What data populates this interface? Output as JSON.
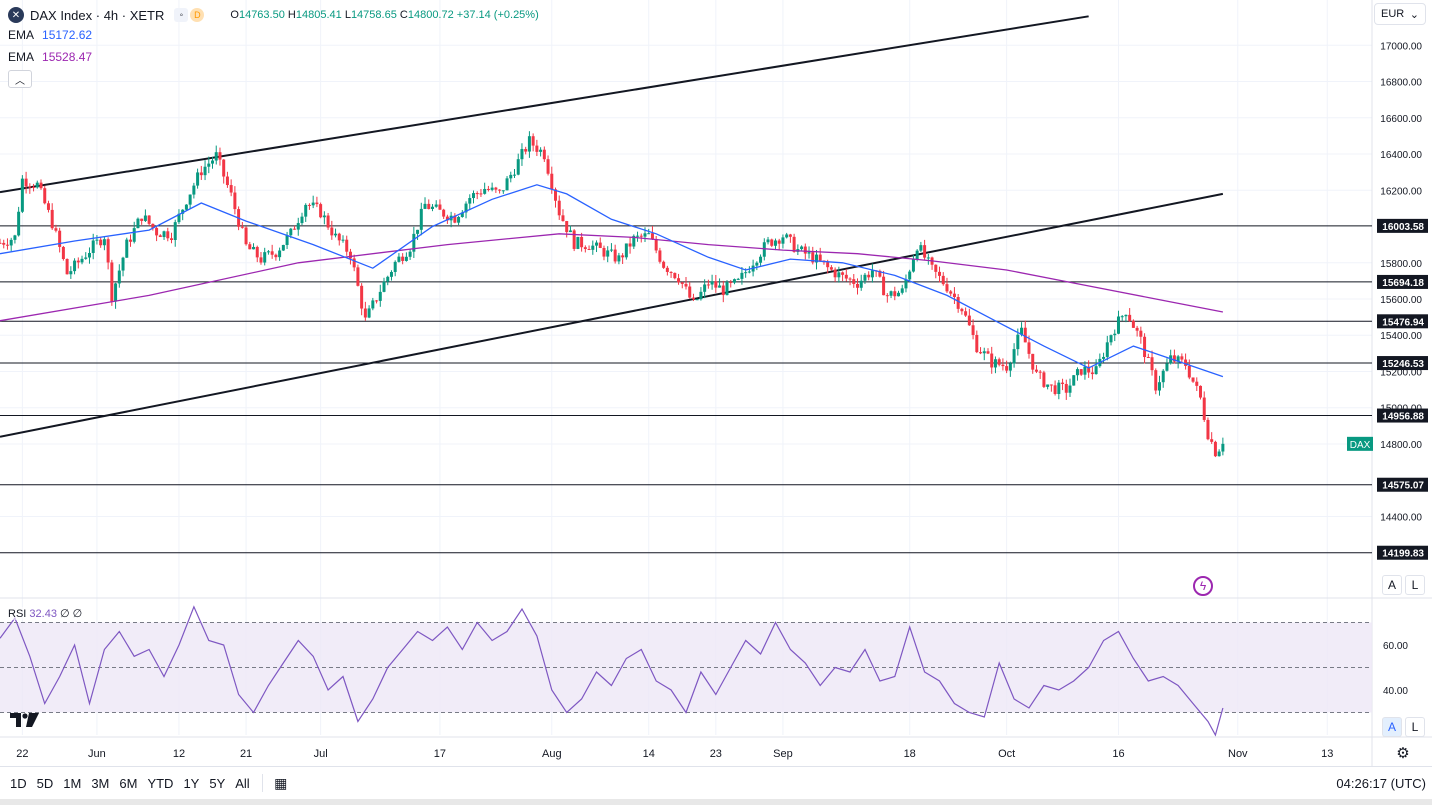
{
  "legend": {
    "symbol_icon": "x-icon",
    "title": "DAX Index · 4h · XETR",
    "d_badge": "D",
    "open_label": "O",
    "open": "14763.50",
    "high_label": "H",
    "high": "14805.41",
    "low_label": "L",
    "low": "14758.65",
    "close_label": "C",
    "close": "14800.72",
    "change": "+37.14 (+0.25%)",
    "ema1_label": "EMA",
    "ema1_value": "15172.62",
    "ema2_label": "EMA",
    "ema2_value": "15528.47",
    "collapse_icon": "chevron-up-icon"
  },
  "currency": {
    "label": "EUR",
    "icon": "chevron-down-icon"
  },
  "price_axis": {
    "ticks": [
      "17000.00",
      "16800.00",
      "16600.00",
      "16400.00",
      "16200.00",
      "15800.00",
      "15600.00",
      "15400.00",
      "15200.00",
      "15000.00",
      "14800.00",
      "14400.00"
    ]
  },
  "levels": [
    "16003.58",
    "15694.18",
    "15476.94",
    "15246.53",
    "14956.88",
    "14575.07",
    "14199.83"
  ],
  "dax_tag": "DAX",
  "time_axis": {
    "labels": [
      "22",
      "Jun",
      "12",
      "21",
      "Jul",
      "17",
      "Aug",
      "14",
      "23",
      "Sep",
      "18",
      "Oct",
      "16",
      "Nov",
      "13"
    ]
  },
  "rsi": {
    "label": "RSI",
    "value": "32.43",
    "extra1": "∅",
    "extra2": "∅",
    "ticks": [
      "60.00",
      "40.00"
    ]
  },
  "axis_buttons": {
    "auto": "A",
    "log": "L"
  },
  "bottom_bar": {
    "ranges": [
      "1D",
      "5D",
      "1M",
      "3M",
      "6M",
      "YTD",
      "1Y",
      "5Y",
      "All"
    ],
    "calendar_icon": "calendar-range-icon",
    "clock": "04:26:17 (UTC)"
  },
  "colors": {
    "up": "#089981",
    "down": "#f23645",
    "ema_fast": "#2962ff",
    "ema_slow": "#9c27b0",
    "rsi_line": "#7e57c2",
    "rsi_band": "#ede7f6",
    "dax_tag": "#089981"
  },
  "chart_data": {
    "type": "candlestick",
    "title": "DAX Index · 4h · XETR",
    "y_range": [
      13950,
      17250
    ],
    "x_range_days": [
      0,
      184
    ],
    "x_ticks": [
      {
        "label": "22",
        "day": 3
      },
      {
        "label": "Jun",
        "day": 13
      },
      {
        "label": "12",
        "day": 24
      },
      {
        "label": "21",
        "day": 33
      },
      {
        "label": "Jul",
        "day": 43
      },
      {
        "label": "17",
        "day": 59
      },
      {
        "label": "Aug",
        "day": 74
      },
      {
        "label": "14",
        "day": 87
      },
      {
        "label": "23",
        "day": 96
      },
      {
        "label": "Sep",
        "day": 105
      },
      {
        "label": "18",
        "day": 122
      },
      {
        "label": "Oct",
        "day": 135
      },
      {
        "label": "16",
        "day": 150
      },
      {
        "label": "Nov",
        "day": 166
      },
      {
        "label": "13",
        "day": 178
      }
    ],
    "close_path": [
      [
        0,
        15910
      ],
      [
        2,
        15940
      ],
      [
        3,
        16260
      ],
      [
        5,
        16230
      ],
      [
        7,
        16020
      ],
      [
        9,
        15740
      ],
      [
        10,
        15780
      ],
      [
        12,
        15870
      ],
      [
        14,
        15950
      ],
      [
        15,
        15620
      ],
      [
        17,
        15900
      ],
      [
        19,
        16060
      ],
      [
        21,
        15970
      ],
      [
        23,
        15960
      ],
      [
        25,
        16150
      ],
      [
        27,
        16310
      ],
      [
        29,
        16390
      ],
      [
        31,
        16170
      ],
      [
        33,
        15890
      ],
      [
        35,
        15820
      ],
      [
        37,
        15860
      ],
      [
        39,
        15960
      ],
      [
        41,
        16130
      ],
      [
        43,
        16080
      ],
      [
        45,
        15940
      ],
      [
        47,
        15850
      ],
      [
        49,
        15480
      ],
      [
        51,
        15650
      ],
      [
        53,
        15800
      ],
      [
        55,
        15890
      ],
      [
        57,
        16120
      ],
      [
        59,
        16080
      ],
      [
        61,
        16050
      ],
      [
        63,
        16160
      ],
      [
        65,
        16210
      ],
      [
        67,
        16180
      ],
      [
        69,
        16320
      ],
      [
        71,
        16470
      ],
      [
        73,
        16400
      ],
      [
        75,
        16080
      ],
      [
        77,
        15910
      ],
      [
        79,
        15900
      ],
      [
        81,
        15860
      ],
      [
        83,
        15820
      ],
      [
        85,
        15930
      ],
      [
        87,
        15950
      ],
      [
        89,
        15790
      ],
      [
        91,
        15720
      ],
      [
        93,
        15570
      ],
      [
        95,
        15690
      ],
      [
        97,
        15650
      ],
      [
        99,
        15690
      ],
      [
        101,
        15810
      ],
      [
        103,
        15910
      ],
      [
        105,
        15950
      ],
      [
        107,
        15870
      ],
      [
        109,
        15830
      ],
      [
        111,
        15770
      ],
      [
        113,
        15720
      ],
      [
        115,
        15690
      ],
      [
        117,
        15760
      ],
      [
        119,
        15620
      ],
      [
        121,
        15640
      ],
      [
        123,
        15900
      ],
      [
        125,
        15760
      ],
      [
        127,
        15670
      ],
      [
        129,
        15550
      ],
      [
        131,
        15340
      ],
      [
        133,
        15250
      ],
      [
        135,
        15230
      ],
      [
        137,
        15420
      ],
      [
        139,
        15180
      ],
      [
        141,
        15110
      ],
      [
        143,
        15100
      ],
      [
        145,
        15210
      ],
      [
        147,
        15200
      ],
      [
        149,
        15410
      ],
      [
        151,
        15540
      ],
      [
        153,
        15370
      ],
      [
        155,
        15120
      ],
      [
        157,
        15270
      ],
      [
        159,
        15240
      ],
      [
        161,
        15050
      ],
      [
        162,
        14860
      ],
      [
        163,
        14760
      ],
      [
        164,
        14800
      ]
    ],
    "ema_fast": [
      [
        0,
        15850
      ],
      [
        10,
        15920
      ],
      [
        20,
        15980
      ],
      [
        27,
        16130
      ],
      [
        33,
        16030
      ],
      [
        42,
        15900
      ],
      [
        50,
        15770
      ],
      [
        58,
        16000
      ],
      [
        66,
        16150
      ],
      [
        72,
        16230
      ],
      [
        76,
        16180
      ],
      [
        82,
        16040
      ],
      [
        88,
        15960
      ],
      [
        95,
        15830
      ],
      [
        100,
        15760
      ],
      [
        106,
        15820
      ],
      [
        113,
        15800
      ],
      [
        120,
        15730
      ],
      [
        127,
        15620
      ],
      [
        133,
        15490
      ],
      [
        140,
        15340
      ],
      [
        146,
        15220
      ],
      [
        152,
        15340
      ],
      [
        157,
        15270
      ],
      [
        164,
        15172
      ]
    ],
    "ema_slow": [
      [
        0,
        15480
      ],
      [
        20,
        15620
      ],
      [
        40,
        15800
      ],
      [
        60,
        15900
      ],
      [
        75,
        15960
      ],
      [
        85,
        15940
      ],
      [
        95,
        15900
      ],
      [
        105,
        15870
      ],
      [
        115,
        15850
      ],
      [
        125,
        15810
      ],
      [
        135,
        15760
      ],
      [
        145,
        15680
      ],
      [
        155,
        15600
      ],
      [
        164,
        15528
      ]
    ],
    "rsi": [
      [
        0,
        63
      ],
      [
        2,
        72
      ],
      [
        4,
        55
      ],
      [
        6,
        34
      ],
      [
        8,
        46
      ],
      [
        10,
        60
      ],
      [
        12,
        34
      ],
      [
        14,
        58
      ],
      [
        16,
        66
      ],
      [
        18,
        55
      ],
      [
        20,
        58
      ],
      [
        22,
        46
      ],
      [
        24,
        60
      ],
      [
        26,
        77
      ],
      [
        28,
        62
      ],
      [
        30,
        60
      ],
      [
        32,
        38
      ],
      [
        34,
        30
      ],
      [
        36,
        42
      ],
      [
        38,
        52
      ],
      [
        40,
        62
      ],
      [
        42,
        55
      ],
      [
        44,
        40
      ],
      [
        46,
        46
      ],
      [
        48,
        26
      ],
      [
        50,
        36
      ],
      [
        52,
        50
      ],
      [
        54,
        58
      ],
      [
        56,
        66
      ],
      [
        58,
        62
      ],
      [
        60,
        68
      ],
      [
        62,
        58
      ],
      [
        64,
        70
      ],
      [
        66,
        62
      ],
      [
        68,
        66
      ],
      [
        70,
        76
      ],
      [
        72,
        64
      ],
      [
        74,
        40
      ],
      [
        76,
        30
      ],
      [
        78,
        36
      ],
      [
        80,
        48
      ],
      [
        82,
        42
      ],
      [
        84,
        54
      ],
      [
        86,
        58
      ],
      [
        88,
        44
      ],
      [
        90,
        40
      ],
      [
        92,
        30
      ],
      [
        94,
        48
      ],
      [
        96,
        38
      ],
      [
        98,
        50
      ],
      [
        100,
        62
      ],
      [
        102,
        56
      ],
      [
        104,
        70
      ],
      [
        106,
        58
      ],
      [
        108,
        52
      ],
      [
        110,
        42
      ],
      [
        112,
        50
      ],
      [
        114,
        48
      ],
      [
        116,
        58
      ],
      [
        118,
        44
      ],
      [
        120,
        46
      ],
      [
        122,
        68
      ],
      [
        124,
        48
      ],
      [
        126,
        44
      ],
      [
        128,
        34
      ],
      [
        130,
        30
      ],
      [
        132,
        28
      ],
      [
        134,
        52
      ],
      [
        136,
        36
      ],
      [
        138,
        32
      ],
      [
        140,
        42
      ],
      [
        142,
        40
      ],
      [
        144,
        44
      ],
      [
        146,
        50
      ],
      [
        148,
        62
      ],
      [
        150,
        66
      ],
      [
        152,
        54
      ],
      [
        154,
        44
      ],
      [
        156,
        46
      ],
      [
        158,
        42
      ],
      [
        160,
        34
      ],
      [
        162,
        26
      ],
      [
        163,
        20
      ],
      [
        164,
        32
      ]
    ],
    "trendlines": [
      {
        "name": "upper-channel",
        "from": [
          0,
          16190
        ],
        "to": [
          146,
          17160
        ]
      },
      {
        "name": "lower-channel",
        "from": [
          0,
          14840
        ],
        "to": [
          164,
          16180
        ]
      }
    ],
    "horizontal_levels": [
      16003.58,
      15694.18,
      15476.94,
      15246.53,
      14956.88,
      14575.07,
      14199.83
    ],
    "rsi_range": [
      20,
      80
    ],
    "rsi_upper": 70,
    "rsi_mid": 50,
    "rsi_lower": 30
  }
}
